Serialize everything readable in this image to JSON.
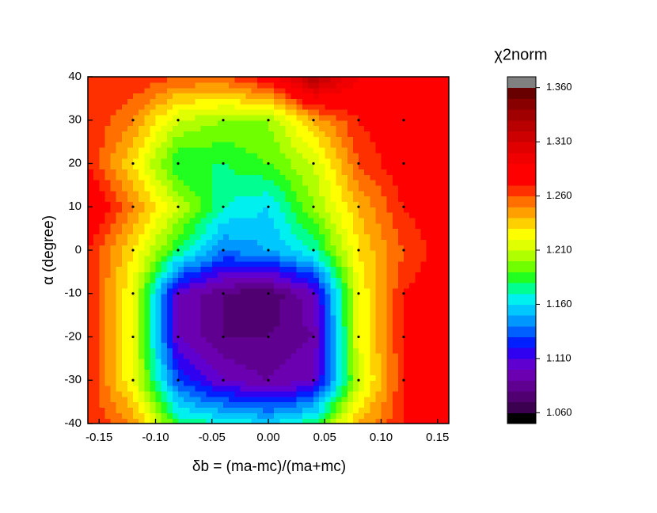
{
  "chart_data": {
    "type": "contour",
    "xlabel": "δb = (ma-mc)/(ma+mc)",
    "ylabel": "α (degree)",
    "colorbar_label": "χ2norm",
    "x": [
      -0.16,
      -0.12,
      -0.08,
      -0.04,
      0,
      0.04,
      0.08,
      0.12,
      0.16
    ],
    "y": [
      -40,
      -30,
      -20,
      -10,
      0,
      10,
      20,
      30,
      40
    ],
    "z": [
      [
        1.27,
        1.25,
        1.18,
        1.17,
        1.16,
        1.18,
        1.24,
        1.27,
        1.28
      ],
      [
        1.27,
        1.22,
        1.13,
        1.1,
        1.09,
        1.1,
        1.21,
        1.27,
        1.28
      ],
      [
        1.27,
        1.22,
        1.1,
        1.08,
        1.08,
        1.09,
        1.22,
        1.27,
        1.29
      ],
      [
        1.27,
        1.22,
        1.1,
        1.08,
        1.07,
        1.1,
        1.22,
        1.27,
        1.28
      ],
      [
        1.27,
        1.23,
        1.18,
        1.14,
        1.15,
        1.17,
        1.23,
        1.26,
        1.28
      ],
      [
        1.29,
        1.25,
        1.21,
        1.17,
        1.16,
        1.2,
        1.24,
        1.27,
        1.28
      ],
      [
        1.27,
        1.23,
        1.18,
        1.18,
        1.19,
        1.21,
        1.26,
        1.28,
        1.28
      ],
      [
        1.27,
        1.25,
        1.21,
        1.2,
        1.2,
        1.24,
        1.27,
        1.28,
        1.28
      ],
      [
        1.27,
        1.27,
        1.26,
        1.26,
        1.28,
        1.33,
        1.29,
        1.28,
        1.28
      ]
    ],
    "samples_x": [
      -0.12,
      -0.08,
      -0.04,
      0,
      0.04,
      0.08,
      0.12
    ],
    "samples_y": [
      -30,
      -20,
      -10,
      0,
      10,
      20,
      30
    ],
    "xlim": [
      -0.16,
      0.16
    ],
    "ylim": [
      -40,
      40
    ],
    "xticks": [
      -0.15,
      {
        "value": -0.1,
        "label": "-0.10"
      },
      -0.05,
      {
        "value": 0,
        "label": "0.00"
      },
      0.05,
      {
        "value": 0.1,
        "label": "0.10"
      },
      0.15
    ],
    "yticks": [
      -40,
      -30,
      -20,
      -10,
      0,
      10,
      20,
      30,
      40
    ],
    "zlim": [
      1.05,
      1.37
    ],
    "zticks": [
      {
        "value": 1.06,
        "label": "1.060"
      },
      {
        "value": 1.11,
        "label": "1.110"
      },
      {
        "value": 1.16,
        "label": "1.160"
      },
      {
        "value": 1.21,
        "label": "1.210"
      },
      {
        "value": 1.26,
        "label": "1.260"
      },
      {
        "value": 1.31,
        "label": "1.310"
      },
      {
        "value": 1.36,
        "label": "1.360"
      }
    ],
    "colors": [
      "#000000",
      "#3c0050",
      "#500070",
      "#600090",
      "#6a00b0",
      "#6000d0",
      "#3000f0",
      "#0020ff",
      "#0060ff",
      "#0098ff",
      "#00c8ff",
      "#00f0f0",
      "#00ff90",
      "#20ff20",
      "#70ff00",
      "#b0ff00",
      "#e0ff00",
      "#ffff00",
      "#ffd000",
      "#ffa000",
      "#ff7000",
      "#ff3000",
      "#ff0000",
      "#ff0000",
      "#f00000",
      "#e00000",
      "#cc0000",
      "#b80000",
      "#a00000",
      "#880000",
      "#680000",
      "#808080"
    ]
  }
}
